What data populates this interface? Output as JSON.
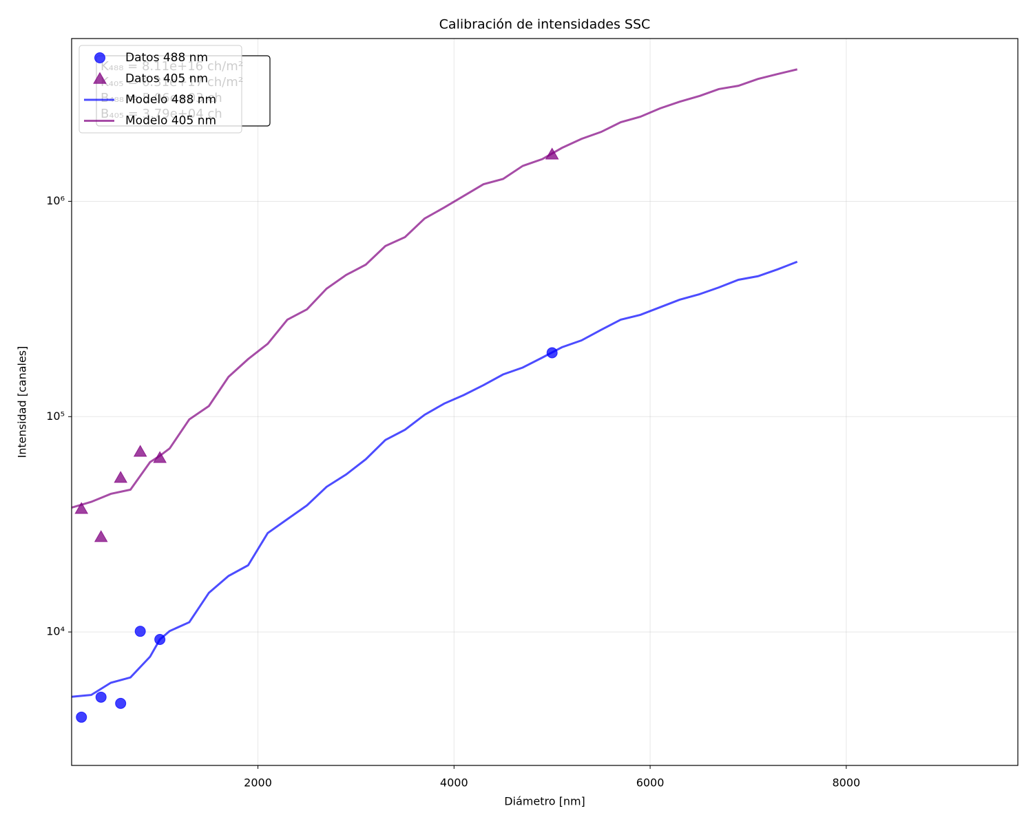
{
  "chart_data": {
    "type": "line",
    "title": "Calibración de intensidades SSC",
    "xlabel": "Diámetro [nm]",
    "ylabel": "Intensidad [canales]",
    "xlim": [
      100,
      9750
    ],
    "xticks": [
      2000,
      4000,
      6000,
      8000
    ],
    "ylim": [
      2400,
      5700000
    ],
    "yscale": "log",
    "yticks": [
      {
        "value": 10000,
        "label": "10⁴"
      },
      {
        "value": 100000,
        "label": "10⁵"
      },
      {
        "value": 1000000,
        "label": "10⁶"
      }
    ],
    "grid": true,
    "legend": "upper left",
    "annotation": [
      "K₄₈₈ = 8.11e+16 ch/m²",
      "K₄₀₅ = 6.31e+17 ch/m²",
      "B₄₈₈ = 5.06e+03 ch",
      "B₄₀₅ = 3.79e+04 ch"
    ],
    "series": [
      {
        "name": "Datos 488 nm",
        "color": "#0000ff",
        "alpha": 0.75,
        "mode": "markers",
        "marker": "circle",
        "x": [
          200,
          400,
          600,
          800,
          1000,
          5000
        ],
        "values": [
          4020,
          4980,
          4660,
          10070,
          9230,
          198000
        ]
      },
      {
        "name": "Datos 405 nm",
        "color": "#800080",
        "alpha": 0.75,
        "mode": "markers",
        "marker": "triangle",
        "x": [
          200,
          400,
          600,
          800,
          1000,
          5000
        ],
        "values": [
          37300,
          27600,
          52000,
          68700,
          64300,
          1650000
        ]
      },
      {
        "name": "Modelo 488 nm",
        "color": "#0000ff",
        "alpha": 0.7,
        "mode": "line",
        "x": [
          100,
          300,
          500,
          700,
          900,
          1000,
          1100,
          1300,
          1500,
          1700,
          1900,
          2100,
          2300,
          2500,
          2700,
          2900,
          3100,
          3300,
          3500,
          3700,
          3900,
          4100,
          4300,
          4500,
          4700,
          4900,
          5100,
          5300,
          5500,
          5700,
          5900,
          6100,
          6300,
          6500,
          6700,
          6900,
          7100,
          7300,
          7500
        ],
        "values": [
          5000,
          5100,
          5810,
          6150,
          7680,
          9230,
          10100,
          11100,
          15200,
          18200,
          20400,
          28800,
          33400,
          38700,
          47200,
          53900,
          63400,
          77900,
          86900,
          102000,
          115000,
          126000,
          140000,
          157000,
          169000,
          188000,
          210000,
          226000,
          253000,
          282000,
          297000,
          322000,
          349000,
          370000,
          398000,
          432000,
          449000,
          483000,
          524000
        ]
      },
      {
        "name": "Modelo 405 nm",
        "color": "#800080",
        "alpha": 0.7,
        "mode": "line",
        "x": [
          100,
          300,
          500,
          700,
          900,
          1000,
          1100,
          1300,
          1500,
          1700,
          1900,
          2100,
          2300,
          2500,
          2700,
          2900,
          3100,
          3300,
          3500,
          3700,
          3900,
          4100,
          4300,
          4500,
          4700,
          4900,
          5100,
          5300,
          5500,
          5700,
          5900,
          6100,
          6300,
          6500,
          6700,
          6900,
          7100,
          7300,
          7500
        ],
        "values": [
          37800,
          40200,
          43800,
          45800,
          61500,
          65800,
          71200,
          97100,
          112000,
          153000,
          185000,
          218000,
          282000,
          315000,
          393000,
          455000,
          508000,
          620000,
          682000,
          832000,
          936000,
          1060000,
          1200000,
          1270000,
          1460000,
          1570000,
          1770000,
          1950000,
          2100000,
          2330000,
          2470000,
          2700000,
          2900000,
          3080000,
          3320000,
          3440000,
          3700000,
          3900000,
          4100000
        ]
      }
    ]
  }
}
